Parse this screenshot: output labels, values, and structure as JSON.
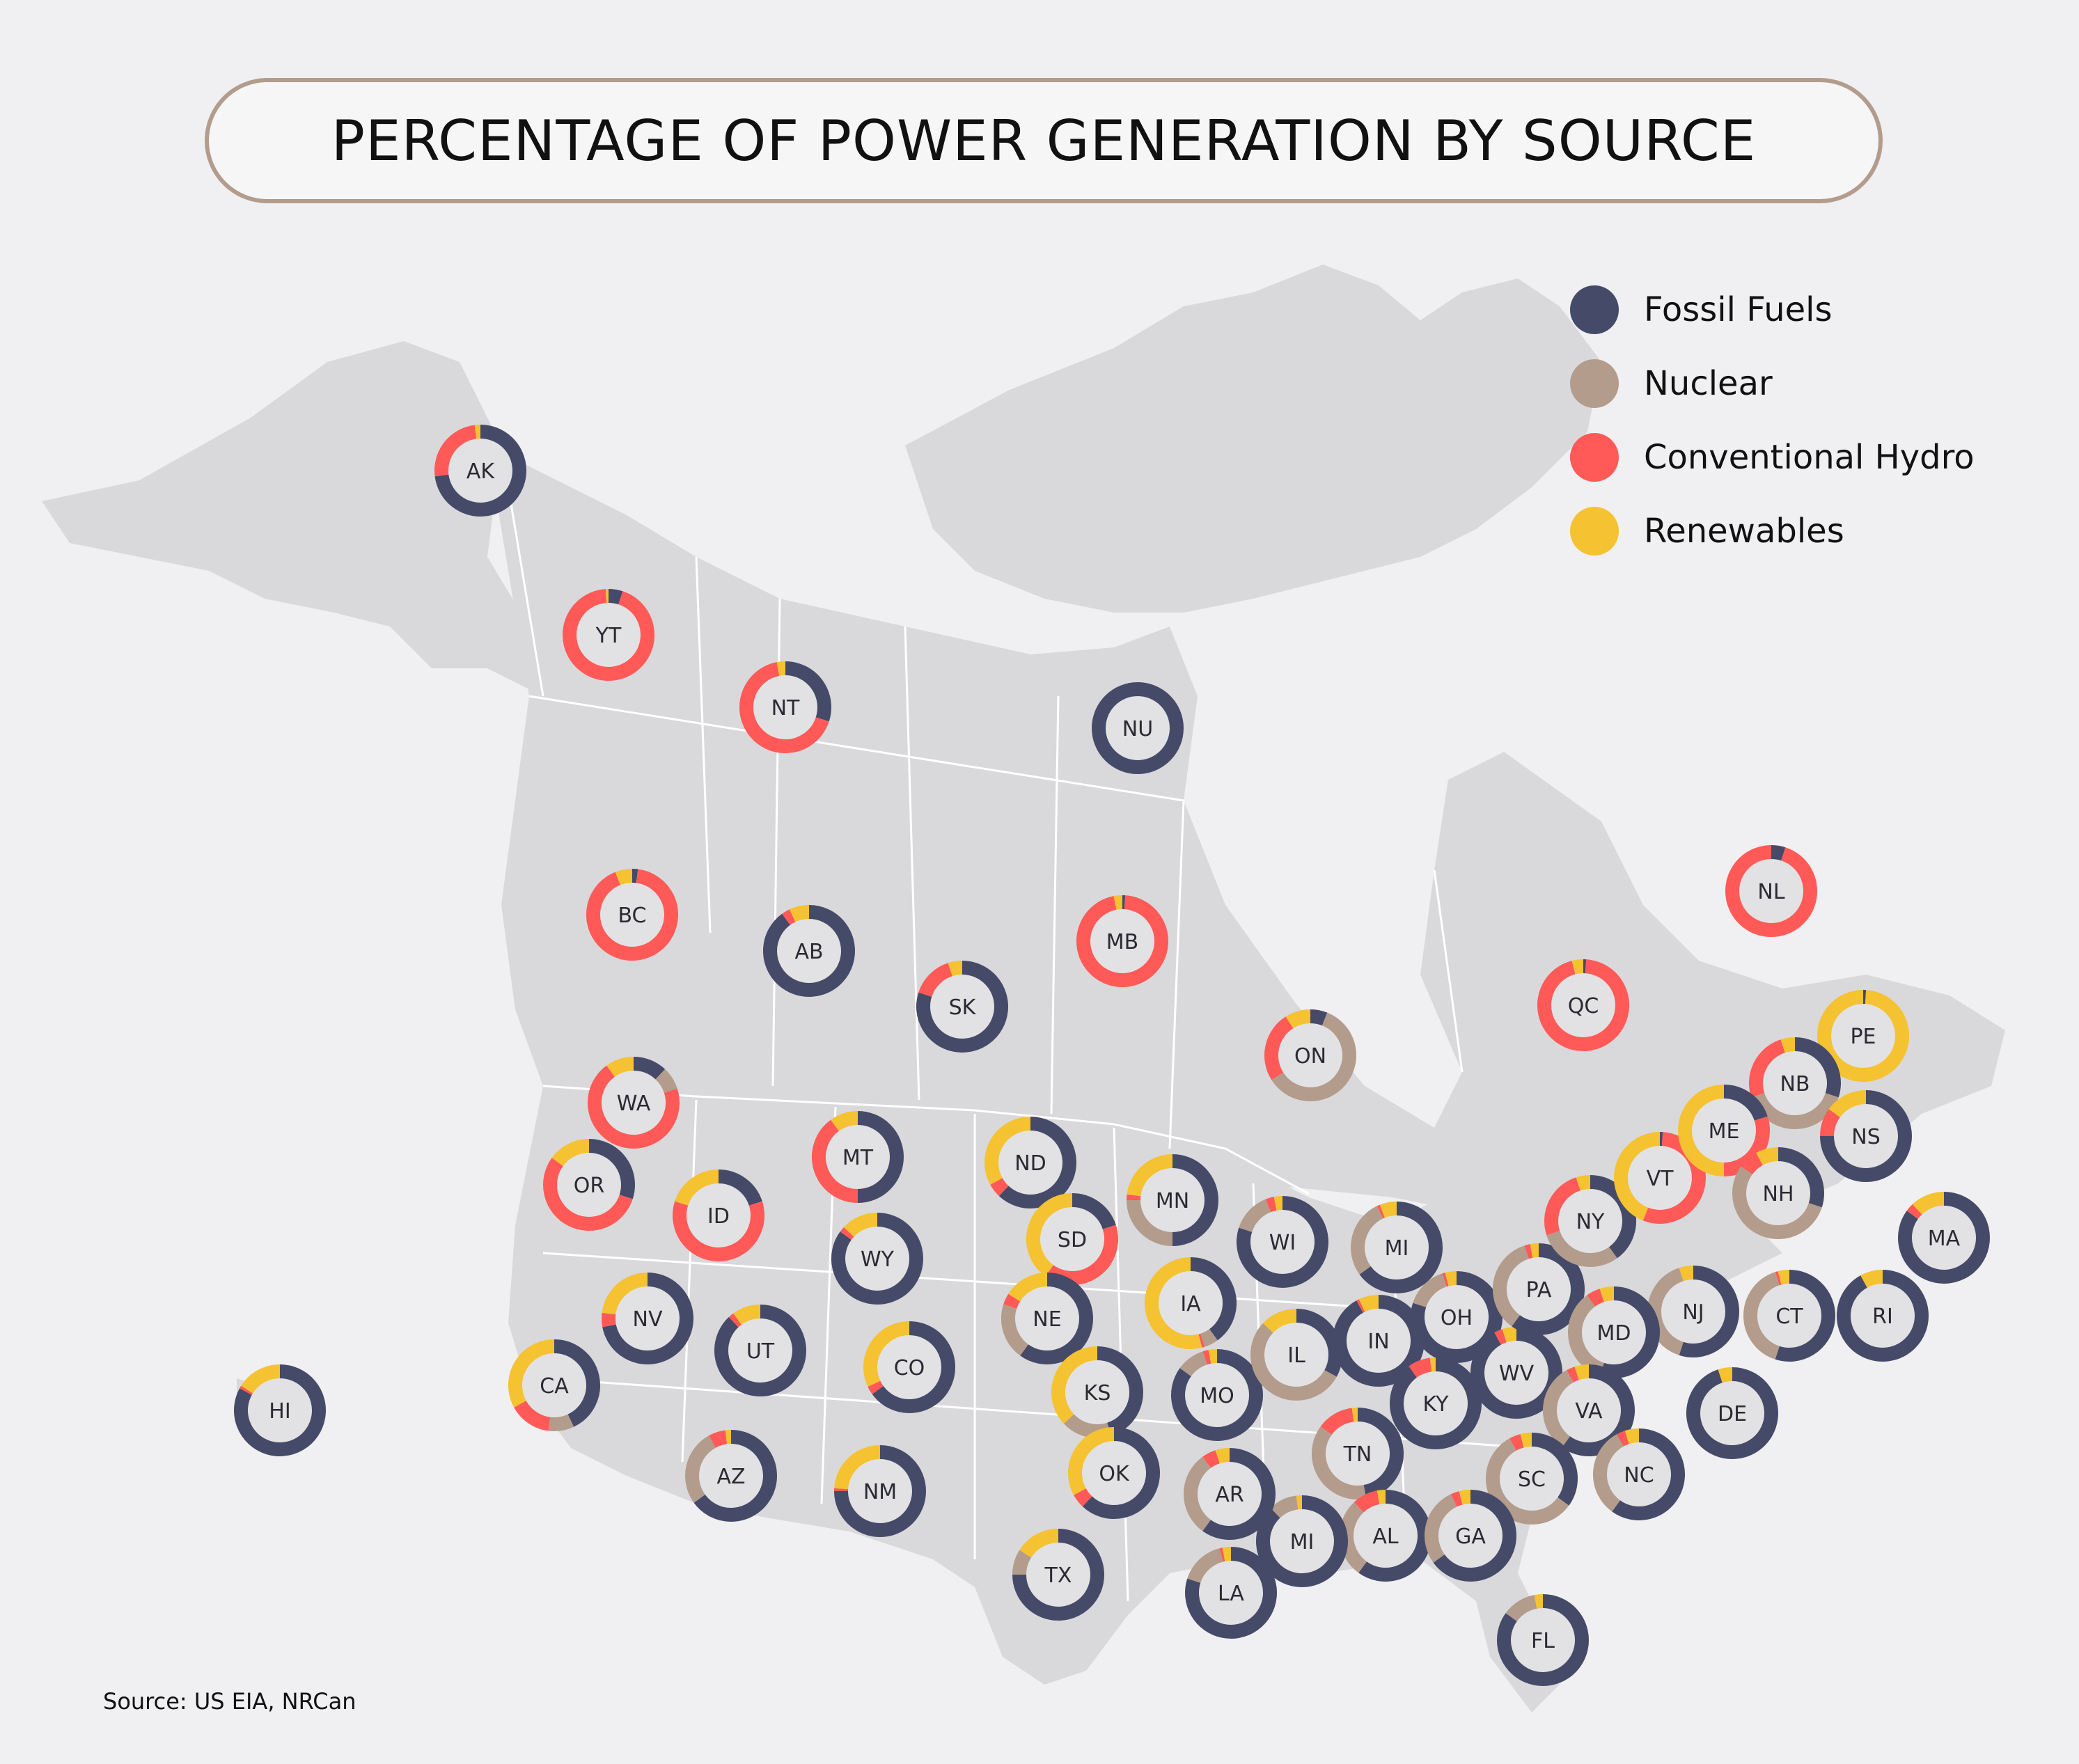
{
  "title": "PERCENTAGE OF POWER GENERATION BY SOURCE",
  "source": "Source: US EIA, NRCan",
  "colors": {
    "fossil": "#454a68",
    "nuclear": "#b39c8c",
    "hydro": "#ff5a57",
    "renewables": "#f5c231",
    "land": "#d9d9db",
    "background": "#f0f0f2",
    "hole": "#e2e2e4"
  },
  "legend": [
    {
      "key": "fossil",
      "label": "Fossil Fuels"
    },
    {
      "key": "nuclear",
      "label": "Nuclear"
    },
    {
      "key": "hydro",
      "label": "Conventional Hydro"
    },
    {
      "key": "renewables",
      "label": "Renewables"
    }
  ],
  "chart_data": {
    "type": "pie",
    "series_order": [
      "fossil",
      "nuclear",
      "hydro",
      "renewables"
    ],
    "regions": [
      {
        "code": "AK",
        "fossil": 73,
        "nuclear": 0,
        "hydro": 25,
        "renewables": 2
      },
      {
        "code": "YT",
        "fossil": 5,
        "nuclear": 0,
        "hydro": 94,
        "renewables": 1
      },
      {
        "code": "NT",
        "fossil": 30,
        "nuclear": 0,
        "hydro": 67,
        "renewables": 3
      },
      {
        "code": "NU",
        "fossil": 100,
        "nuclear": 0,
        "hydro": 0,
        "renewables": 0
      },
      {
        "code": "BC",
        "fossil": 2,
        "nuclear": 0,
        "hydro": 92,
        "renewables": 6
      },
      {
        "code": "AB",
        "fossil": 90,
        "nuclear": 0,
        "hydro": 3,
        "renewables": 7
      },
      {
        "code": "SK",
        "fossil": 80,
        "nuclear": 0,
        "hydro": 15,
        "renewables": 5
      },
      {
        "code": "MB",
        "fossil": 1,
        "nuclear": 0,
        "hydro": 96,
        "renewables": 3
      },
      {
        "code": "ON",
        "fossil": 6,
        "nuclear": 60,
        "hydro": 25,
        "renewables": 9
      },
      {
        "code": "QC",
        "fossil": 1,
        "nuclear": 0,
        "hydro": 95,
        "renewables": 4
      },
      {
        "code": "NL",
        "fossil": 5,
        "nuclear": 0,
        "hydro": 95,
        "renewables": 0
      },
      {
        "code": "PE",
        "fossil": 1,
        "nuclear": 0,
        "hydro": 0,
        "renewables": 99
      },
      {
        "code": "NB",
        "fossil": 30,
        "nuclear": 40,
        "hydro": 25,
        "renewables": 5
      },
      {
        "code": "NS",
        "fossil": 75,
        "nuclear": 0,
        "hydro": 10,
        "renewables": 15
      },
      {
        "code": "WA",
        "fossil": 12,
        "nuclear": 8,
        "hydro": 70,
        "renewables": 10
      },
      {
        "code": "OR",
        "fossil": 30,
        "nuclear": 0,
        "hydro": 55,
        "renewables": 15
      },
      {
        "code": "ID",
        "fossil": 20,
        "nuclear": 0,
        "hydro": 60,
        "renewables": 20
      },
      {
        "code": "MT",
        "fossil": 50,
        "nuclear": 0,
        "hydro": 40,
        "renewables": 10
      },
      {
        "code": "WY",
        "fossil": 85,
        "nuclear": 0,
        "hydro": 2,
        "renewables": 13
      },
      {
        "code": "ND",
        "fossil": 62,
        "nuclear": 0,
        "hydro": 5,
        "renewables": 33
      },
      {
        "code": "SD",
        "fossil": 20,
        "nuclear": 0,
        "hydro": 40,
        "renewables": 40
      },
      {
        "code": "MN",
        "fossil": 50,
        "nuclear": 25,
        "hydro": 2,
        "renewables": 23
      },
      {
        "code": "WI",
        "fossil": 80,
        "nuclear": 14,
        "hydro": 3,
        "renewables": 3
      },
      {
        "code": "MI",
        "fossil": 65,
        "nuclear": 28,
        "hydro": 1,
        "renewables": 6
      },
      {
        "code": "IA",
        "fossil": 40,
        "nuclear": 5,
        "hydro": 1,
        "renewables": 54
      },
      {
        "code": "NE",
        "fossil": 60,
        "nuclear": 20,
        "hydro": 4,
        "renewables": 16
      },
      {
        "code": "NV",
        "fossil": 72,
        "nuclear": 0,
        "hydro": 5,
        "renewables": 23
      },
      {
        "code": "UT",
        "fossil": 88,
        "nuclear": 0,
        "hydro": 2,
        "renewables": 10
      },
      {
        "code": "CO",
        "fossil": 65,
        "nuclear": 0,
        "hydro": 3,
        "renewables": 32
      },
      {
        "code": "CA",
        "fossil": 43,
        "nuclear": 9,
        "hydro": 15,
        "renewables": 33
      },
      {
        "code": "HI",
        "fossil": 83,
        "nuclear": 0,
        "hydro": 1,
        "renewables": 16
      },
      {
        "code": "KS",
        "fossil": 45,
        "nuclear": 18,
        "hydro": 0,
        "renewables": 37
      },
      {
        "code": "MO",
        "fossil": 85,
        "nuclear": 10,
        "hydro": 2,
        "renewables": 3
      },
      {
        "code": "IL",
        "fossil": 33,
        "nuclear": 54,
        "hydro": 0,
        "renewables": 13
      },
      {
        "code": "IN",
        "fossil": 92,
        "nuclear": 0,
        "hydro": 1,
        "renewables": 7
      },
      {
        "code": "OH",
        "fossil": 80,
        "nuclear": 15,
        "hydro": 1,
        "renewables": 4
      },
      {
        "code": "KY",
        "fossil": 90,
        "nuclear": 0,
        "hydro": 8,
        "renewables": 2
      },
      {
        "code": "WV",
        "fossil": 92,
        "nuclear": 0,
        "hydro": 3,
        "renewables": 5
      },
      {
        "code": "PA",
        "fossil": 60,
        "nuclear": 35,
        "hydro": 2,
        "renewables": 3
      },
      {
        "code": "NY",
        "fossil": 40,
        "nuclear": 30,
        "hydro": 25,
        "renewables": 5
      },
      {
        "code": "VT",
        "fossil": 1,
        "nuclear": 0,
        "hydro": 55,
        "renewables": 44
      },
      {
        "code": "ME",
        "fossil": 20,
        "nuclear": 0,
        "hydro": 30,
        "renewables": 50
      },
      {
        "code": "NH",
        "fossil": 30,
        "nuclear": 55,
        "hydro": 7,
        "renewables": 8
      },
      {
        "code": "MA",
        "fossil": 85,
        "nuclear": 0,
        "hydro": 3,
        "renewables": 12
      },
      {
        "code": "NJ",
        "fossil": 55,
        "nuclear": 40,
        "hydro": 0,
        "renewables": 5
      },
      {
        "code": "CT",
        "fossil": 55,
        "nuclear": 40,
        "hydro": 1,
        "renewables": 4
      },
      {
        "code": "RI",
        "fossil": 92,
        "nuclear": 0,
        "hydro": 0,
        "renewables": 8
      },
      {
        "code": "MD",
        "fossil": 55,
        "nuclear": 35,
        "hydro": 5,
        "renewables": 5
      },
      {
        "code": "DE",
        "fossil": 95,
        "nuclear": 0,
        "hydro": 0,
        "renewables": 5
      },
      {
        "code": "VA",
        "fossil": 60,
        "nuclear": 32,
        "hydro": 3,
        "renewables": 5
      },
      {
        "code": "NC",
        "fossil": 60,
        "nuclear": 32,
        "hydro": 3,
        "renewables": 5
      },
      {
        "code": "SC",
        "fossil": 35,
        "nuclear": 57,
        "hydro": 4,
        "renewables": 4
      },
      {
        "code": "TN",
        "fossil": 47,
        "nuclear": 38,
        "hydro": 13,
        "renewables": 2
      },
      {
        "code": "AL",
        "fossil": 60,
        "nuclear": 28,
        "hydro": 9,
        "renewables": 3
      },
      {
        "code": "GA",
        "fossil": 65,
        "nuclear": 28,
        "hydro": 3,
        "renewables": 4
      },
      {
        "code": "MI",
        "fossil": 88,
        "nuclear": 10,
        "hydro": 0,
        "renewables": 2
      },
      {
        "code": "AR",
        "fossil": 60,
        "nuclear": 30,
        "hydro": 5,
        "renewables": 5
      },
      {
        "code": "LA",
        "fossil": 80,
        "nuclear": 16,
        "hydro": 1,
        "renewables": 3
      },
      {
        "code": "TX",
        "fossil": 75,
        "nuclear": 9,
        "hydro": 0,
        "renewables": 16
      },
      {
        "code": "OK",
        "fossil": 62,
        "nuclear": 0,
        "hydro": 5,
        "renewables": 33
      },
      {
        "code": "NM",
        "fossil": 75,
        "nuclear": 0,
        "hydro": 1,
        "renewables": 24
      },
      {
        "code": "AZ",
        "fossil": 65,
        "nuclear": 27,
        "hydro": 6,
        "renewables": 2
      },
      {
        "code": "FL",
        "fossil": 85,
        "nuclear": 12,
        "hydro": 0,
        "renewables": 3
      }
    ]
  }
}
